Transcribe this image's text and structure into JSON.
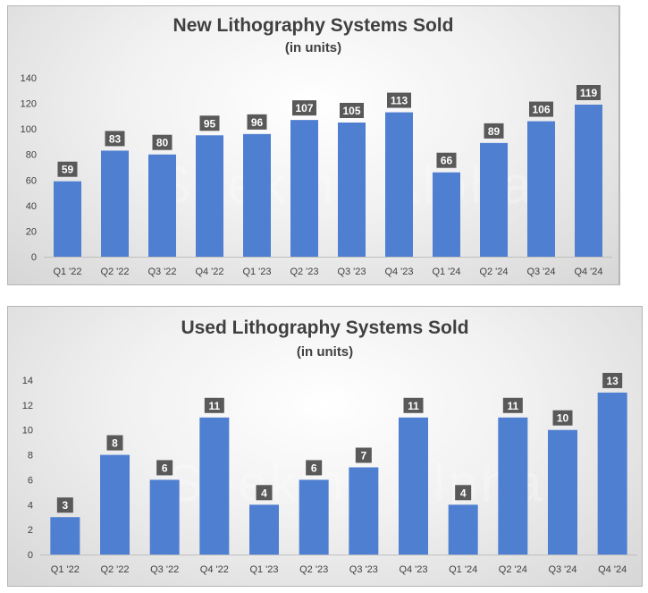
{
  "colors": {
    "bar": "#4f7fd1",
    "data_label_bg": "#595959",
    "axis": "#bfbfbf",
    "text": "#404040"
  },
  "watermark": "Seeking Alpha",
  "chart_data": [
    {
      "type": "bar",
      "title": "New Lithography Systems Sold",
      "subtitle": "(in units)",
      "categories": [
        "Q1 '22",
        "Q2 '22",
        "Q3 '22",
        "Q4 '22",
        "Q1 '23",
        "Q2 '23",
        "Q3 '23",
        "Q4 '23",
        "Q1 '24",
        "Q2 '24",
        "Q3 '24",
        "Q4 '24"
      ],
      "values": [
        59,
        83,
        80,
        95,
        96,
        107,
        105,
        113,
        66,
        89,
        106,
        119
      ],
      "ylim": [
        0,
        140
      ],
      "yticks": [
        0,
        20,
        40,
        60,
        80,
        100,
        120,
        140
      ],
      "grid": false,
      "data_labels": true
    },
    {
      "type": "bar",
      "title": "Used Lithography Systems Sold",
      "subtitle": "(in units)",
      "categories": [
        "Q1 '22",
        "Q2 '22",
        "Q3 '22",
        "Q4 '22",
        "Q1 '23",
        "Q2 '23",
        "Q3 '23",
        "Q4 '23",
        "Q1 '24",
        "Q2 '24",
        "Q3 '24",
        "Q4 '24"
      ],
      "values": [
        3,
        8,
        6,
        11,
        4,
        6,
        7,
        11,
        4,
        11,
        10,
        13
      ],
      "ylim": [
        0,
        14
      ],
      "yticks": [
        0,
        2,
        4,
        6,
        8,
        10,
        12,
        14
      ],
      "grid": false,
      "data_labels": true
    }
  ]
}
